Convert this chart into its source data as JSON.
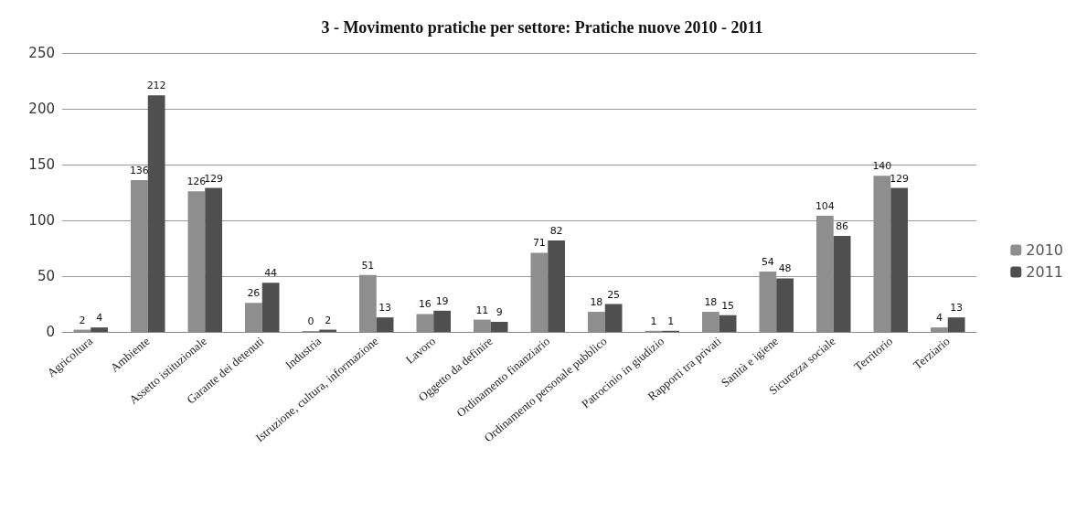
{
  "chart_data": {
    "type": "bar",
    "title": "3 - Movimento pratiche per settore: Pratiche nuove 2010 - 2011",
    "categories": [
      "Agricoltura",
      "Ambiente",
      "Assetto istituzionale",
      "Garante dei detenuti",
      "Industria",
      "Istruzione, cultura, informazione",
      "Lavoro",
      "Oggetto da definire",
      "Ordinamento finanziario",
      "Ordinamento personale pubblico",
      "Patrocinio in giudizio",
      "Rapporti tra privati",
      "Sanità e igiene",
      "Sicurezza sociale",
      "Territorio",
      "Terziario"
    ],
    "series": [
      {
        "name": "2010",
        "color": "#8e8e8e",
        "values": [
          2,
          136,
          126,
          26,
          0,
          51,
          16,
          11,
          71,
          18,
          1,
          18,
          54,
          104,
          140,
          4
        ]
      },
      {
        "name": "2011",
        "color": "#4f4f4f",
        "values": [
          4,
          212,
          129,
          44,
          2,
          13,
          19,
          9,
          82,
          25,
          1,
          15,
          48,
          86,
          129,
          13
        ]
      }
    ],
    "ylim": [
      0,
      250
    ],
    "yticks": [
      0,
      50,
      100,
      150,
      200,
      250
    ],
    "grid": "y",
    "legend": "right",
    "data_labels": true
  }
}
